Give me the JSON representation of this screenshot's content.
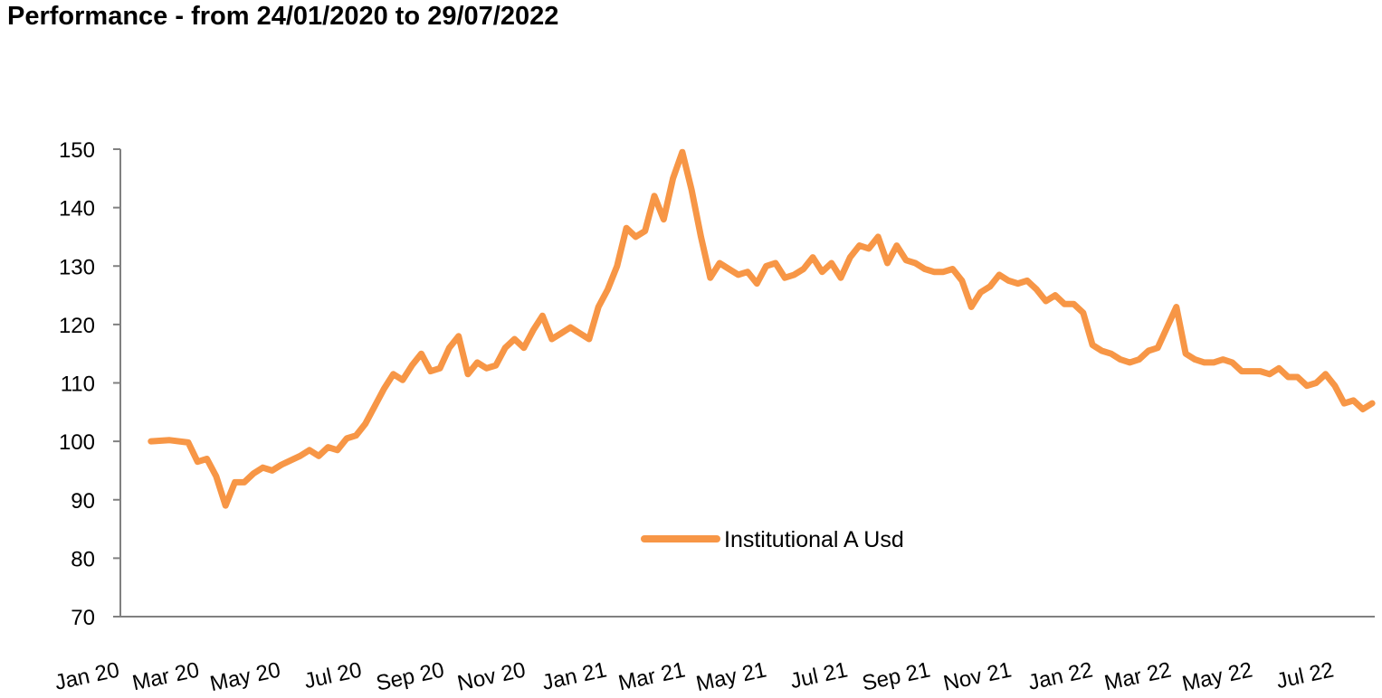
{
  "header": {
    "title": "Performance - from 24/01/2020 to 29/07/2022"
  },
  "chart_data": {
    "type": "line",
    "title": "Performance - from 24/01/2020 to 29/07/2022",
    "xlabel": "",
    "ylabel": "",
    "ylim": [
      70,
      150
    ],
    "yticks": [
      70,
      80,
      90,
      100,
      110,
      120,
      130,
      140,
      150
    ],
    "xticks": [
      "Jan 20",
      "Mar 20",
      "May 20",
      "Jul 20",
      "Sep 20",
      "Nov 20",
      "Jan 21",
      "Mar 21",
      "May 21",
      "Jul 21",
      "Sep 21",
      "Nov 21",
      "Jan 22",
      "Mar 22",
      "May 22",
      "Jul 22"
    ],
    "grid": false,
    "legend_position": "bottom-center",
    "series": [
      {
        "name": "Institutional A Usd",
        "color": "#F79646",
        "points": [
          [
            "2020-01-24",
            100
          ],
          [
            "2020-02-07",
            100.2
          ],
          [
            "2020-02-21",
            99.8
          ],
          [
            "2020-02-28",
            96.5
          ],
          [
            "2020-03-06",
            97
          ],
          [
            "2020-03-13",
            94
          ],
          [
            "2020-03-20",
            89
          ],
          [
            "2020-03-27",
            93
          ],
          [
            "2020-04-03",
            93
          ],
          [
            "2020-04-10",
            94.5
          ],
          [
            "2020-04-17",
            95.5
          ],
          [
            "2020-04-24",
            95
          ],
          [
            "2020-05-01",
            96
          ],
          [
            "2020-05-15",
            97.5
          ],
          [
            "2020-05-22",
            98.5
          ],
          [
            "2020-05-29",
            97.5
          ],
          [
            "2020-06-05",
            99
          ],
          [
            "2020-06-12",
            98.5
          ],
          [
            "2020-06-19",
            100.5
          ],
          [
            "2020-06-26",
            101
          ],
          [
            "2020-07-03",
            103
          ],
          [
            "2020-07-10",
            106
          ],
          [
            "2020-07-17",
            109
          ],
          [
            "2020-07-24",
            111.5
          ],
          [
            "2020-07-31",
            110.5
          ],
          [
            "2020-08-07",
            113
          ],
          [
            "2020-08-14",
            115
          ],
          [
            "2020-08-21",
            112
          ],
          [
            "2020-08-28",
            112.5
          ],
          [
            "2020-09-04",
            116
          ],
          [
            "2020-09-11",
            118
          ],
          [
            "2020-09-18",
            111.5
          ],
          [
            "2020-09-25",
            113.5
          ],
          [
            "2020-10-02",
            112.5
          ],
          [
            "2020-10-09",
            113
          ],
          [
            "2020-10-16",
            116
          ],
          [
            "2020-10-23",
            117.5
          ],
          [
            "2020-10-30",
            116
          ],
          [
            "2020-11-06",
            119
          ],
          [
            "2020-11-13",
            121.5
          ],
          [
            "2020-11-20",
            117.5
          ],
          [
            "2020-11-27",
            118.5
          ],
          [
            "2020-12-04",
            119.5
          ],
          [
            "2020-12-11",
            118.5
          ],
          [
            "2020-12-18",
            117.5
          ],
          [
            "2020-12-25",
            123
          ],
          [
            "2021-01-01",
            126
          ],
          [
            "2021-01-08",
            130
          ],
          [
            "2021-01-15",
            136.5
          ],
          [
            "2021-01-22",
            135
          ],
          [
            "2021-01-29",
            136
          ],
          [
            "2021-02-05",
            142
          ],
          [
            "2021-02-12",
            138
          ],
          [
            "2021-02-19",
            145
          ],
          [
            "2021-02-26",
            149.5
          ],
          [
            "2021-03-05",
            143
          ],
          [
            "2021-03-12",
            135
          ],
          [
            "2021-03-19",
            128
          ],
          [
            "2021-03-26",
            130.5
          ],
          [
            "2021-04-02",
            129.5
          ],
          [
            "2021-04-09",
            128.5
          ],
          [
            "2021-04-16",
            129
          ],
          [
            "2021-04-23",
            127
          ],
          [
            "2021-04-30",
            130
          ],
          [
            "2021-05-07",
            130.5
          ],
          [
            "2021-05-14",
            128
          ],
          [
            "2021-05-21",
            128.5
          ],
          [
            "2021-05-28",
            129.5
          ],
          [
            "2021-06-04",
            131.5
          ],
          [
            "2021-06-11",
            129
          ],
          [
            "2021-06-18",
            130.5
          ],
          [
            "2021-06-25",
            128
          ],
          [
            "2021-07-02",
            131.5
          ],
          [
            "2021-07-09",
            133.5
          ],
          [
            "2021-07-16",
            133
          ],
          [
            "2021-07-23",
            135
          ],
          [
            "2021-07-30",
            130.5
          ],
          [
            "2021-08-06",
            133.5
          ],
          [
            "2021-08-13",
            131
          ],
          [
            "2021-08-20",
            130.5
          ],
          [
            "2021-08-27",
            129.5
          ],
          [
            "2021-09-03",
            129
          ],
          [
            "2021-09-10",
            129
          ],
          [
            "2021-09-17",
            129.5
          ],
          [
            "2021-09-24",
            127.5
          ],
          [
            "2021-10-01",
            123
          ],
          [
            "2021-10-08",
            125.5
          ],
          [
            "2021-10-15",
            126.5
          ],
          [
            "2021-10-22",
            128.5
          ],
          [
            "2021-10-29",
            127.5
          ],
          [
            "2021-11-05",
            127
          ],
          [
            "2021-11-12",
            127.5
          ],
          [
            "2021-11-19",
            126
          ],
          [
            "2021-11-26",
            124
          ],
          [
            "2021-12-03",
            125
          ],
          [
            "2021-12-10",
            123.5
          ],
          [
            "2021-12-17",
            123.5
          ],
          [
            "2021-12-24",
            122
          ],
          [
            "2021-12-31",
            116.5
          ],
          [
            "2022-01-07",
            115.5
          ],
          [
            "2022-01-14",
            115
          ],
          [
            "2022-01-21",
            114
          ],
          [
            "2022-01-28",
            113.5
          ],
          [
            "2022-02-04",
            114
          ],
          [
            "2022-02-11",
            115.5
          ],
          [
            "2022-02-18",
            116
          ],
          [
            "2022-02-25",
            119.5
          ],
          [
            "2022-03-04",
            123
          ],
          [
            "2022-03-11",
            115
          ],
          [
            "2022-03-18",
            114
          ],
          [
            "2022-03-25",
            113.5
          ],
          [
            "2022-04-01",
            113.5
          ],
          [
            "2022-04-08",
            114
          ],
          [
            "2022-04-15",
            113.5
          ],
          [
            "2022-04-22",
            112
          ],
          [
            "2022-04-29",
            112
          ],
          [
            "2022-05-06",
            112
          ],
          [
            "2022-05-13",
            111.5
          ],
          [
            "2022-05-20",
            112.5
          ],
          [
            "2022-05-27",
            111
          ],
          [
            "2022-06-03",
            111
          ],
          [
            "2022-06-10",
            109.5
          ],
          [
            "2022-06-17",
            110
          ],
          [
            "2022-06-24",
            111.5
          ],
          [
            "2022-07-01",
            109.5
          ],
          [
            "2022-07-08",
            106.5
          ],
          [
            "2022-07-15",
            107
          ],
          [
            "2022-07-22",
            105.5
          ],
          [
            "2022-07-29",
            106.5
          ]
        ]
      }
    ]
  }
}
